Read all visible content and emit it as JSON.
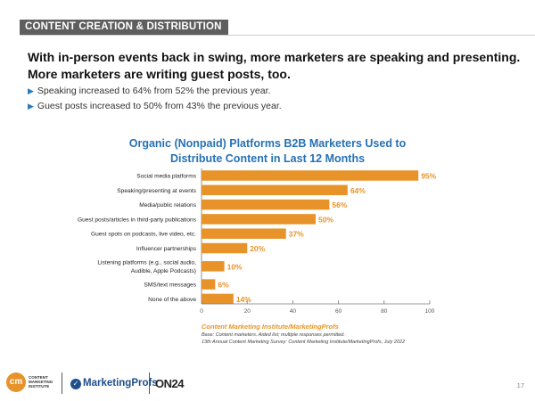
{
  "header": {
    "section_tag": "CONTENT CREATION & DISTRIBUTION"
  },
  "headline": {
    "line1": "With in-person events back in swing, more marketers are speaking and presenting.",
    "line2": "More marketers are writing guest posts, too."
  },
  "bullets": [
    "Speaking increased to 64% from 52% the previous year.",
    "Guest posts increased to 50% from 43% the previous year."
  ],
  "chart_data": {
    "type": "bar",
    "orientation": "horizontal",
    "title_line1": "Organic (Nonpaid) Platforms B2B Marketers Used to",
    "title_line2": "Distribute Content in Last 12 Months",
    "categories": [
      [
        "Social media platforms"
      ],
      [
        "Speaking/presenting at events"
      ],
      [
        "Media/public relations"
      ],
      [
        "Guest posts/articles in third-party publications"
      ],
      [
        "Guest spots on podcasts, live video, etc."
      ],
      [
        "Influencer partnerships"
      ],
      [
        "Listening platforms (e.g., social audio,",
        "Audible, Apple Podcasts)"
      ],
      [
        "SMS/text messages"
      ],
      [
        "None of the above"
      ]
    ],
    "values": [
      95,
      64,
      56,
      50,
      37,
      20,
      10,
      6,
      14
    ],
    "value_labels": [
      "95%",
      "64%",
      "56%",
      "50%",
      "37%",
      "20%",
      "10%",
      "6%",
      "14%"
    ],
    "xlim": [
      0,
      100
    ],
    "xticks": [
      "0",
      "20",
      "40",
      "60",
      "80",
      "100"
    ],
    "bar_color": "#e8932a",
    "label_color": "#e8932a",
    "title_color": "#2671b5",
    "grid": false
  },
  "source": {
    "title": "Content Marketing Institute/MarketingProfs",
    "line1": "Base: Content marketers. Aided list; multiple responses permitted.",
    "line2": "13th Annual Content Marketing Survey: Content Marketing Institute/MarketingProfs, July 2022"
  },
  "logos": {
    "cmi_mark": "cm",
    "cmi_text": [
      "CONTENT",
      "MARKETING",
      "INSTITUTE"
    ],
    "marketingprofs": "MarketingProfs",
    "on24": "ON24"
  },
  "page_number": "17"
}
